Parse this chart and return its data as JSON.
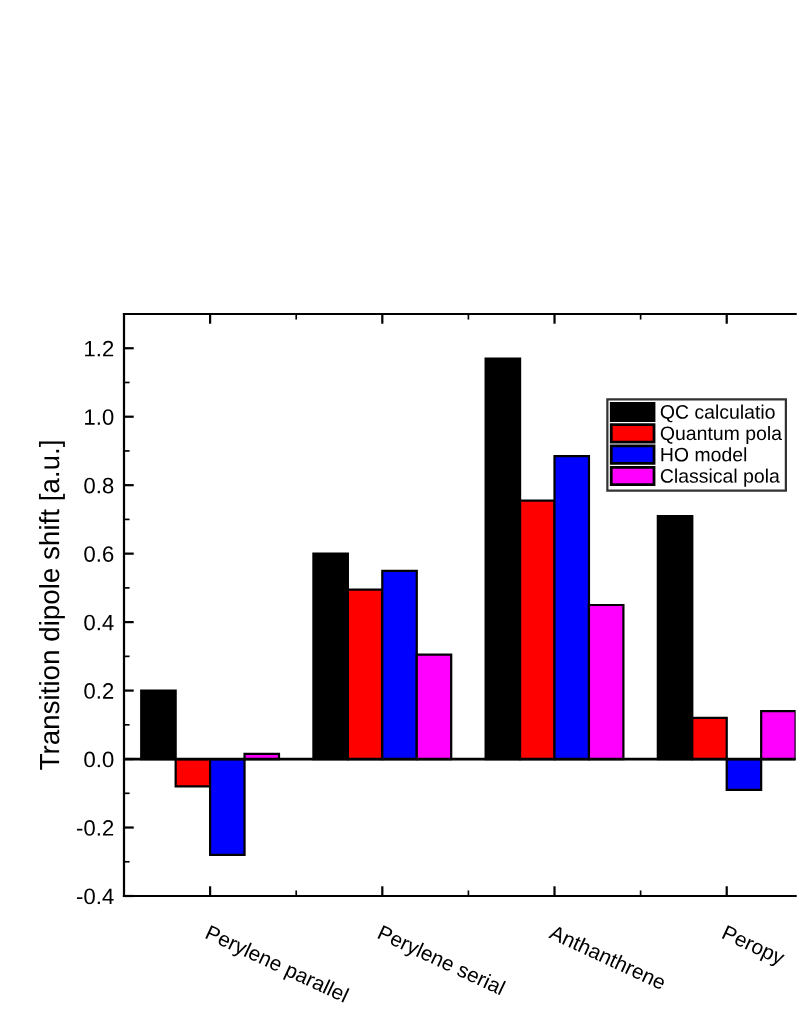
{
  "chart_data": {
    "type": "bar",
    "ylabel": "Transition dipole shift [a.u.]",
    "categories": [
      "Perylene parallel",
      "Perylene serial",
      "Anthanthrene",
      "Peropy"
    ],
    "series": [
      {
        "name": "QC calculatio",
        "color": "#000000",
        "values": [
          0.2,
          0.6,
          1.17,
          0.71
        ]
      },
      {
        "name": "Quantum pola",
        "color": "#ff0000",
        "values": [
          -0.08,
          0.495,
          0.755,
          0.12
        ]
      },
      {
        "name": "HO model",
        "color": "#0000ff",
        "values": [
          -0.28,
          0.55,
          0.885,
          -0.09
        ]
      },
      {
        "name": "Classical pola",
        "color": "#ff00ff",
        "values": [
          0.015,
          0.305,
          0.45,
          0.14
        ]
      }
    ],
    "ylim": [
      -0.4,
      1.3
    ],
    "yticks": [
      -0.4,
      -0.2,
      {
        "value": 0,
        "label": "0.0"
      },
      0.2,
      0.4,
      0.6,
      0.8,
      {
        "value": 1,
        "label": "1.0"
      },
      1.2
    ],
    "ref_lines": [
      {
        "axis": "y",
        "value": 0,
        "color": "#000000"
      }
    ],
    "legend": "top right",
    "grid": false
  }
}
